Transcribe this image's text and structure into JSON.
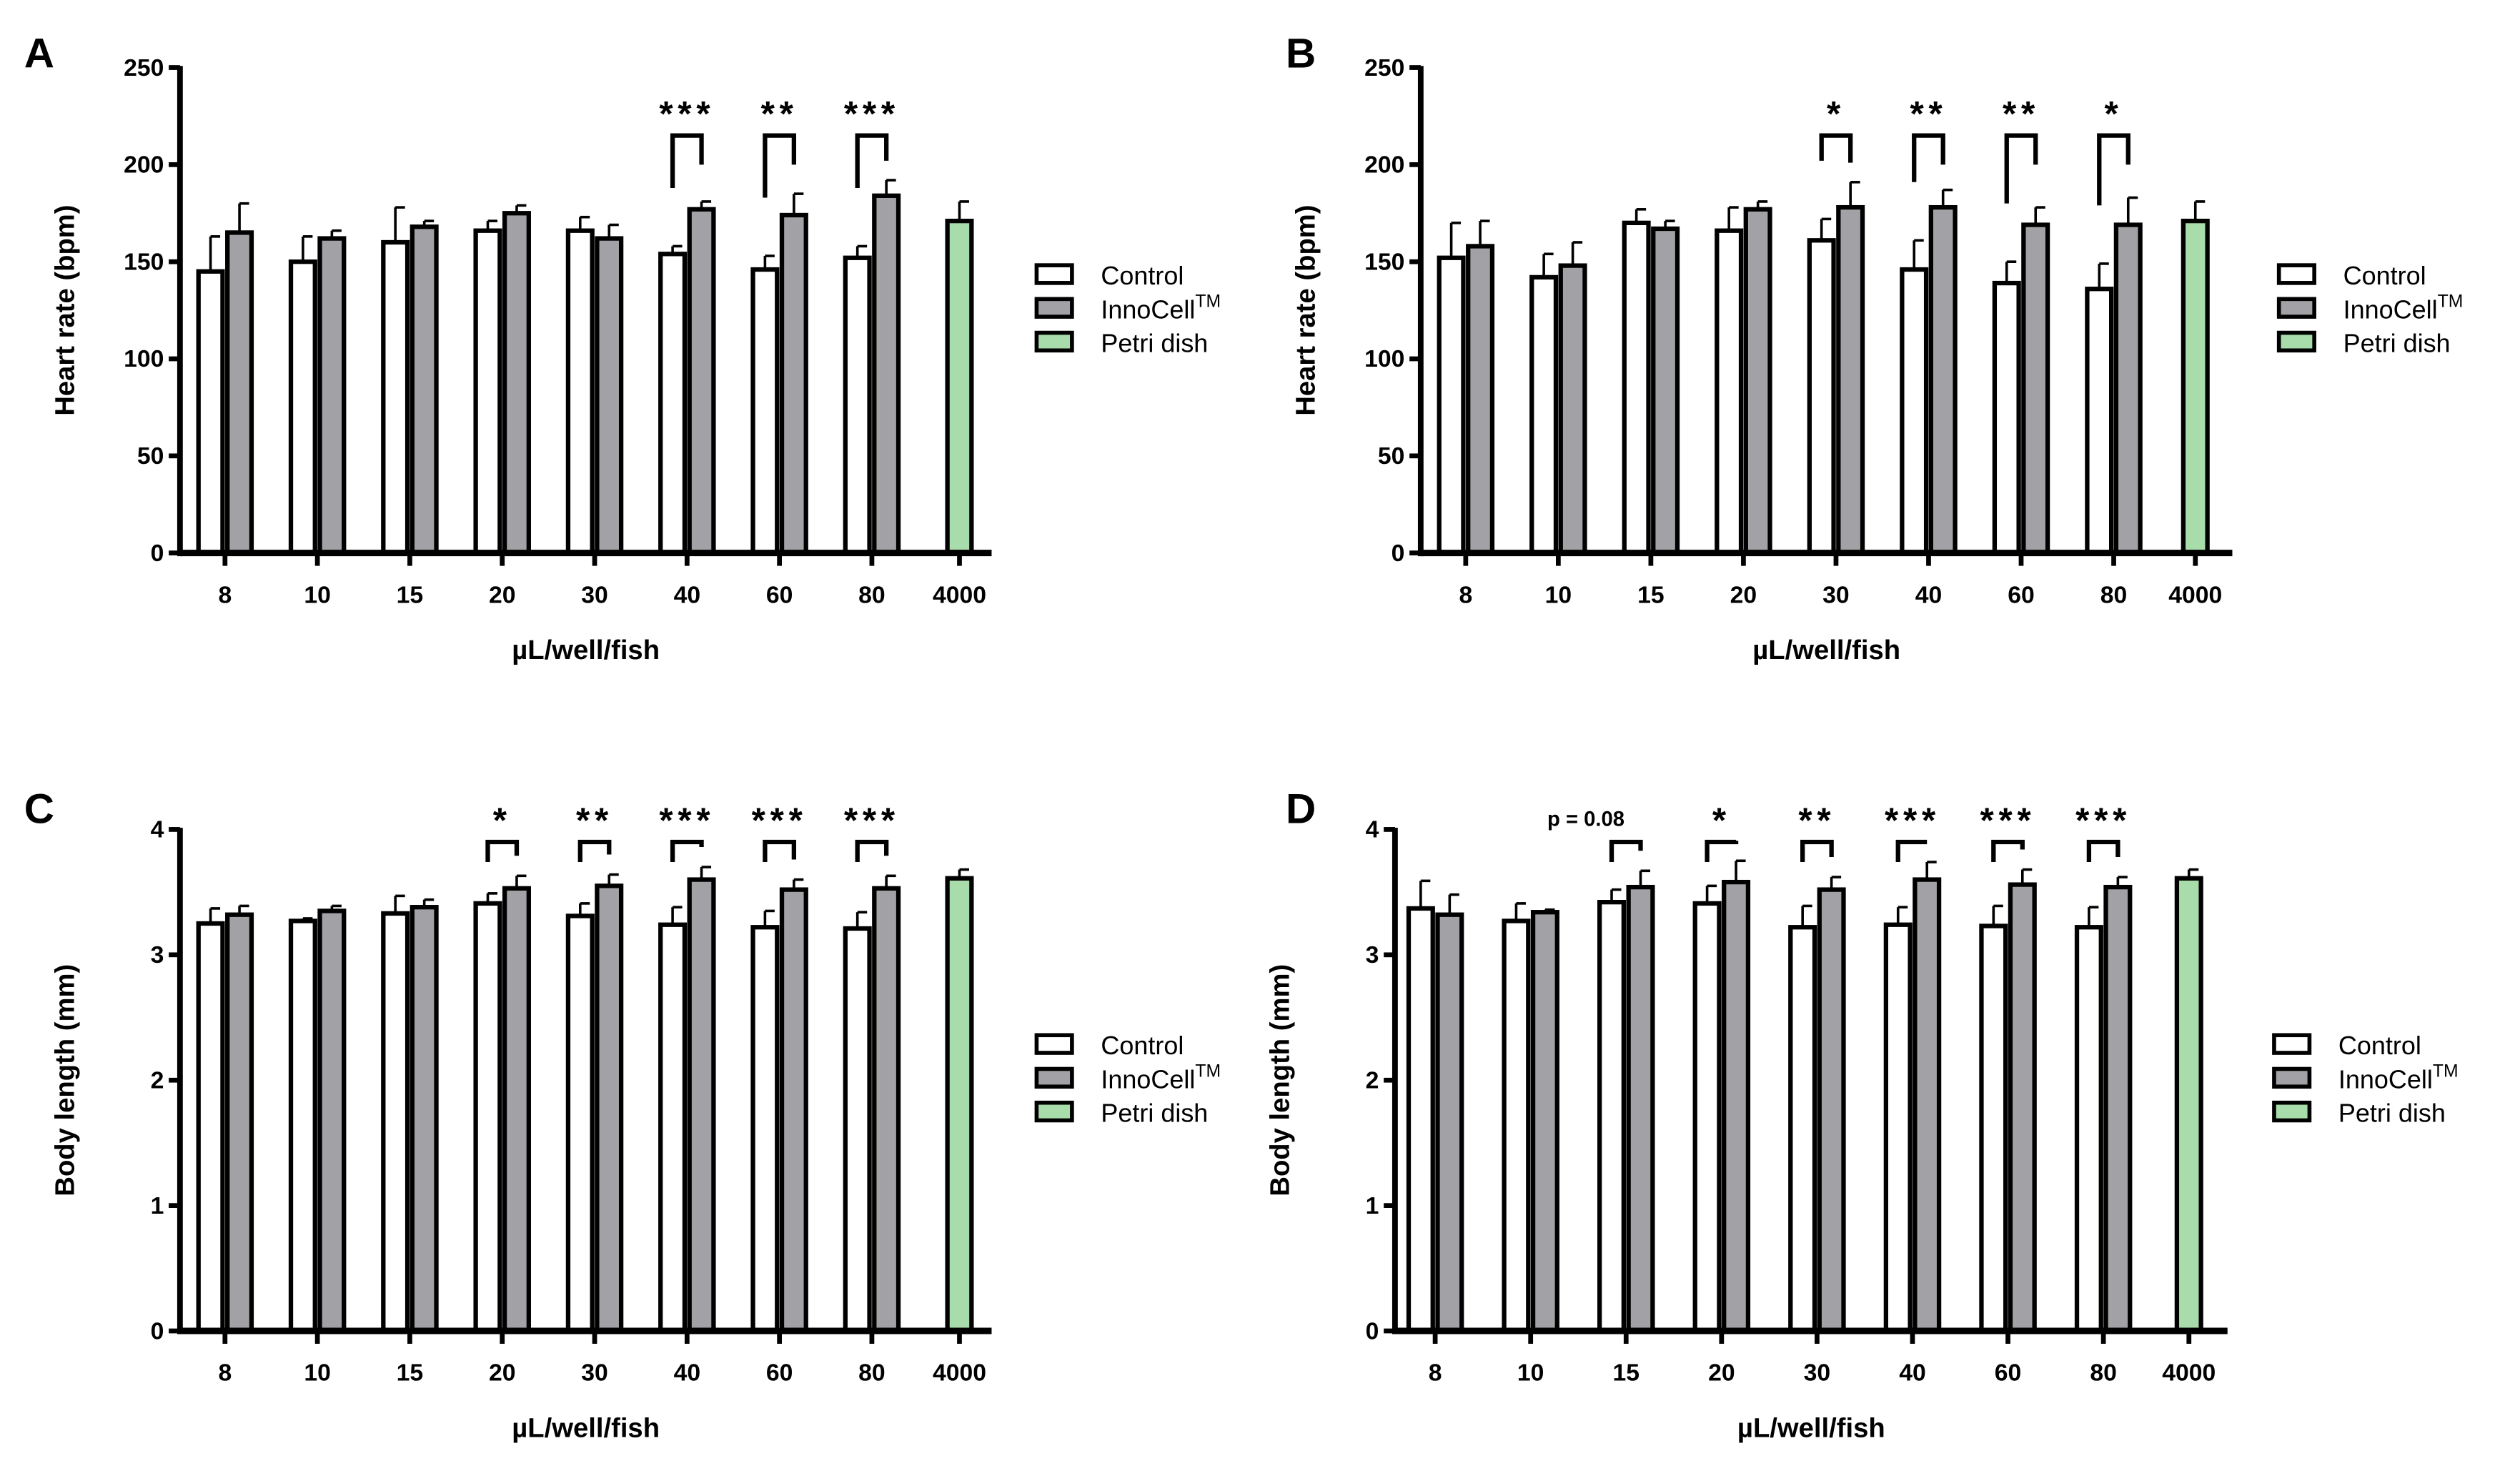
{
  "colors": {
    "control": "#ffffff",
    "innocell": "#a2a2a6",
    "petri": "#a8dcaa",
    "stroke": "#000000"
  },
  "legend": {
    "control": "Control",
    "innocell": "InnoCell",
    "innocell_sup": "TM",
    "petri": "Petri dish"
  },
  "chart_data": [
    {
      "panel": "A",
      "type": "bar",
      "ylabel": "Heart rate (bpm)",
      "xlabel": "µL/well/fish",
      "ylim": [
        0,
        250
      ],
      "yticks": [
        0,
        50,
        100,
        150,
        200,
        250
      ],
      "categories": [
        "8",
        "10",
        "15",
        "20",
        "30",
        "40",
        "60",
        "80",
        "4000"
      ],
      "series": [
        {
          "name": "Control",
          "values": [
            145,
            150,
            160,
            166,
            166,
            154,
            146,
            152,
            null
          ],
          "errors": [
            18,
            13,
            18,
            5,
            7,
            4,
            7,
            6,
            null
          ]
        },
        {
          "name": "InnoCell™",
          "values": [
            165,
            162,
            168,
            175,
            162,
            177,
            174,
            184,
            null
          ],
          "errors": [
            15,
            4,
            3,
            4,
            7,
            4,
            11,
            8,
            null
          ]
        },
        {
          "name": "Petri dish",
          "values": [
            null,
            null,
            null,
            null,
            null,
            null,
            null,
            null,
            171
          ],
          "errors": [
            null,
            null,
            null,
            null,
            null,
            null,
            null,
            null,
            10
          ]
        }
      ],
      "bracket_top": 215,
      "significance": [
        {
          "category": "40",
          "label": "***"
        },
        {
          "category": "60",
          "label": "**"
        },
        {
          "category": "80",
          "label": "***"
        }
      ]
    },
    {
      "panel": "B",
      "type": "bar",
      "ylabel": "Heart rate (bpm)",
      "xlabel": "µL/well/fish",
      "ylim": [
        0,
        250
      ],
      "yticks": [
        0,
        50,
        100,
        150,
        200,
        250
      ],
      "categories": [
        "8",
        "10",
        "15",
        "20",
        "30",
        "40",
        "60",
        "80",
        "4000"
      ],
      "series": [
        {
          "name": "Control",
          "values": [
            152,
            142,
            170,
            166,
            161,
            146,
            139,
            136,
            null
          ],
          "errors": [
            18,
            12,
            7,
            12,
            11,
            15,
            11,
            13,
            null
          ]
        },
        {
          "name": "InnoCell™",
          "values": [
            158,
            148,
            167,
            177,
            178,
            178,
            169,
            169,
            null
          ],
          "errors": [
            13,
            12,
            4,
            4,
            13,
            9,
            9,
            14,
            null
          ]
        },
        {
          "name": "Petri dish",
          "values": [
            null,
            null,
            null,
            null,
            null,
            null,
            null,
            null,
            171
          ],
          "errors": [
            null,
            null,
            null,
            null,
            null,
            null,
            null,
            null,
            10
          ]
        }
      ],
      "bracket_top": 215,
      "significance": [
        {
          "category": "30",
          "label": "*"
        },
        {
          "category": "40",
          "label": "**"
        },
        {
          "category": "60",
          "label": "**"
        },
        {
          "category": "80",
          "label": "*"
        }
      ]
    },
    {
      "panel": "C",
      "type": "bar",
      "ylabel": "Body length (mm)",
      "xlabel": "µL/well/fish",
      "ylim": [
        0,
        4
      ],
      "yticks": [
        0,
        1,
        2,
        3,
        4
      ],
      "categories": [
        "8",
        "10",
        "15",
        "20",
        "30",
        "40",
        "60",
        "80",
        "4000"
      ],
      "series": [
        {
          "name": "Control",
          "values": [
            3.25,
            3.27,
            3.33,
            3.41,
            3.31,
            3.24,
            3.22,
            3.21,
            null
          ],
          "errors": [
            0.12,
            0.02,
            0.14,
            0.08,
            0.1,
            0.14,
            0.13,
            0.13,
            null
          ]
        },
        {
          "name": "InnoCell™",
          "values": [
            3.32,
            3.35,
            3.38,
            3.53,
            3.55,
            3.6,
            3.52,
            3.53,
            null
          ],
          "errors": [
            0.07,
            0.04,
            0.06,
            0.1,
            0.09,
            0.1,
            0.08,
            0.1,
            null
          ]
        },
        {
          "name": "Petri dish",
          "values": [
            null,
            null,
            null,
            null,
            null,
            null,
            null,
            null,
            3.61
          ],
          "errors": [
            null,
            null,
            null,
            null,
            null,
            null,
            null,
            null,
            0.07
          ]
        }
      ],
      "bracket_top": 3.9,
      "significance": [
        {
          "category": "20",
          "label": "*"
        },
        {
          "category": "30",
          "label": "**"
        },
        {
          "category": "40",
          "label": "***"
        },
        {
          "category": "60",
          "label": "***"
        },
        {
          "category": "80",
          "label": "***"
        }
      ]
    },
    {
      "panel": "D",
      "type": "bar",
      "ylabel": "Body length (mm)",
      "xlabel": "µL/well/fish",
      "ylim": [
        0,
        4
      ],
      "yticks": [
        0,
        1,
        2,
        3,
        4
      ],
      "categories": [
        "8",
        "10",
        "15",
        "20",
        "30",
        "40",
        "60",
        "80",
        "4000"
      ],
      "series": [
        {
          "name": "Control",
          "values": [
            3.37,
            3.27,
            3.42,
            3.41,
            3.22,
            3.24,
            3.23,
            3.22,
            null
          ],
          "errors": [
            0.22,
            0.14,
            0.1,
            0.14,
            0.17,
            0.14,
            0.16,
            0.16,
            null
          ]
        },
        {
          "name": "InnoCell™",
          "values": [
            3.32,
            3.34,
            3.54,
            3.58,
            3.52,
            3.6,
            3.56,
            3.54,
            null
          ],
          "errors": [
            0.16,
            0.02,
            0.13,
            0.17,
            0.1,
            0.14,
            0.12,
            0.08,
            null
          ]
        },
        {
          "name": "Petri dish",
          "values": [
            null,
            null,
            null,
            null,
            null,
            null,
            null,
            null,
            3.61
          ],
          "errors": [
            null,
            null,
            null,
            null,
            null,
            null,
            null,
            null,
            0.07
          ]
        }
      ],
      "bracket_top": 3.9,
      "significance": [
        {
          "category": "15",
          "label": "p = 0.08"
        },
        {
          "category": "20",
          "label": "*"
        },
        {
          "category": "30",
          "label": "**"
        },
        {
          "category": "40",
          "label": "***"
        },
        {
          "category": "60",
          "label": "***"
        },
        {
          "category": "80",
          "label": "***"
        }
      ]
    }
  ]
}
